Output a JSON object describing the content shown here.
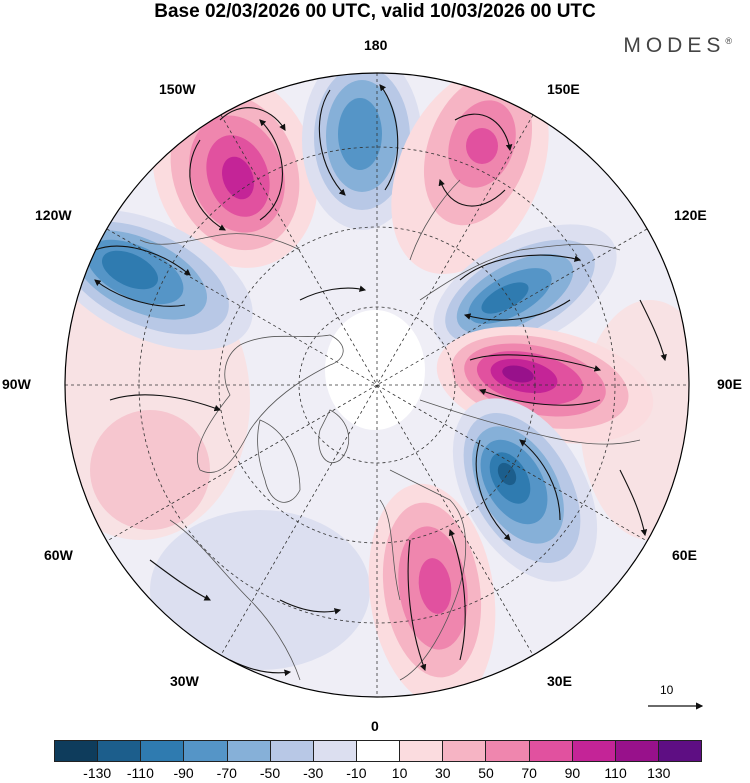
{
  "header": {
    "title": "Base 02/03/2026 00 UTC, valid 10/03/2026 00 UTC",
    "brand": "MODES",
    "brand_mark": "®"
  },
  "map": {
    "projection": "north polar stereographic",
    "longitude_labels": {
      "top": "180",
      "bottom": "0",
      "left": "90W",
      "right": "90E",
      "upper_left_1": "150W",
      "upper_left_2": "120W",
      "upper_right_1": "150E",
      "upper_right_2": "120E",
      "lower_left_1": "60W",
      "lower_left_2": "30W",
      "lower_right_1": "60E",
      "lower_right_2": "30E"
    },
    "anomaly_centres": [
      {
        "region": "Aleutians / 150W",
        "sign": "positive",
        "level": 90
      },
      {
        "region": "North Pacific 180",
        "sign": "negative",
        "level": -70
      },
      {
        "region": "Bering / 160E",
        "sign": "positive",
        "level": 70
      },
      {
        "region": "Alaska / 120W",
        "sign": "negative",
        "level": -90
      },
      {
        "region": "East Siberia / 120E",
        "sign": "negative",
        "level": -90
      },
      {
        "region": "Central Siberia / 90E",
        "sign": "positive",
        "level": 110
      },
      {
        "region": "West Siberia / 60E",
        "sign": "negative",
        "level": -110
      },
      {
        "region": "Europe / 30E",
        "sign": "positive",
        "level": 70
      }
    ],
    "reference_vector": "10"
  },
  "colorbar": {
    "ticks": [
      "-130",
      "-110",
      "-90",
      "-70",
      "-50",
      "-30",
      "-10",
      "10",
      "30",
      "50",
      "70",
      "90",
      "110",
      "130"
    ],
    "colors": [
      "#0e3c5c",
      "#1c5e8c",
      "#2f7bb0",
      "#5595c7",
      "#86b0d8",
      "#b8c8e6",
      "#dcdff0",
      "#ffffff",
      "#fbdcdf",
      "#f6b4c4",
      "#ef86ae",
      "#e1519f",
      "#c42497",
      "#98118b",
      "#5e0e83"
    ]
  }
}
